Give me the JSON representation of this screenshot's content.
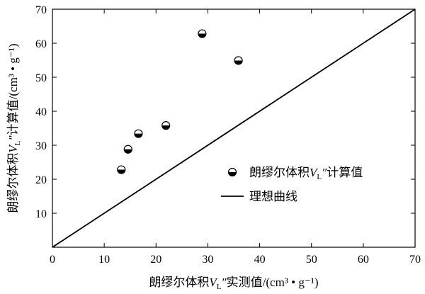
{
  "chart_data": {
    "type": "scatter",
    "xlabel": "朗缪尔体积V_L″实测值/(cm³ • g⁻¹)",
    "ylabel": "朗缪尔体积V_L″计算值/(cm³ • g⁻¹)",
    "xlim": [
      0,
      70
    ],
    "ylim": [
      0,
      70
    ],
    "x_ticks": [
      0,
      10,
      20,
      30,
      40,
      50,
      60,
      70
    ],
    "y_ticks": [
      10,
      20,
      30,
      40,
      50,
      60,
      70
    ],
    "grid": false,
    "legend_position": "lower-right",
    "series": [
      {
        "name": "朗缪尔体积V_L″计算值",
        "kind": "points",
        "x": [
          13.3,
          14.6,
          16.6,
          21.9,
          28.9,
          35.9
        ],
        "y": [
          22.8,
          28.8,
          33.4,
          35.8,
          62.8,
          54.9
        ]
      },
      {
        "name": "理想曲线",
        "kind": "line",
        "x": [
          0,
          70
        ],
        "y": [
          0,
          70
        ]
      }
    ]
  }
}
